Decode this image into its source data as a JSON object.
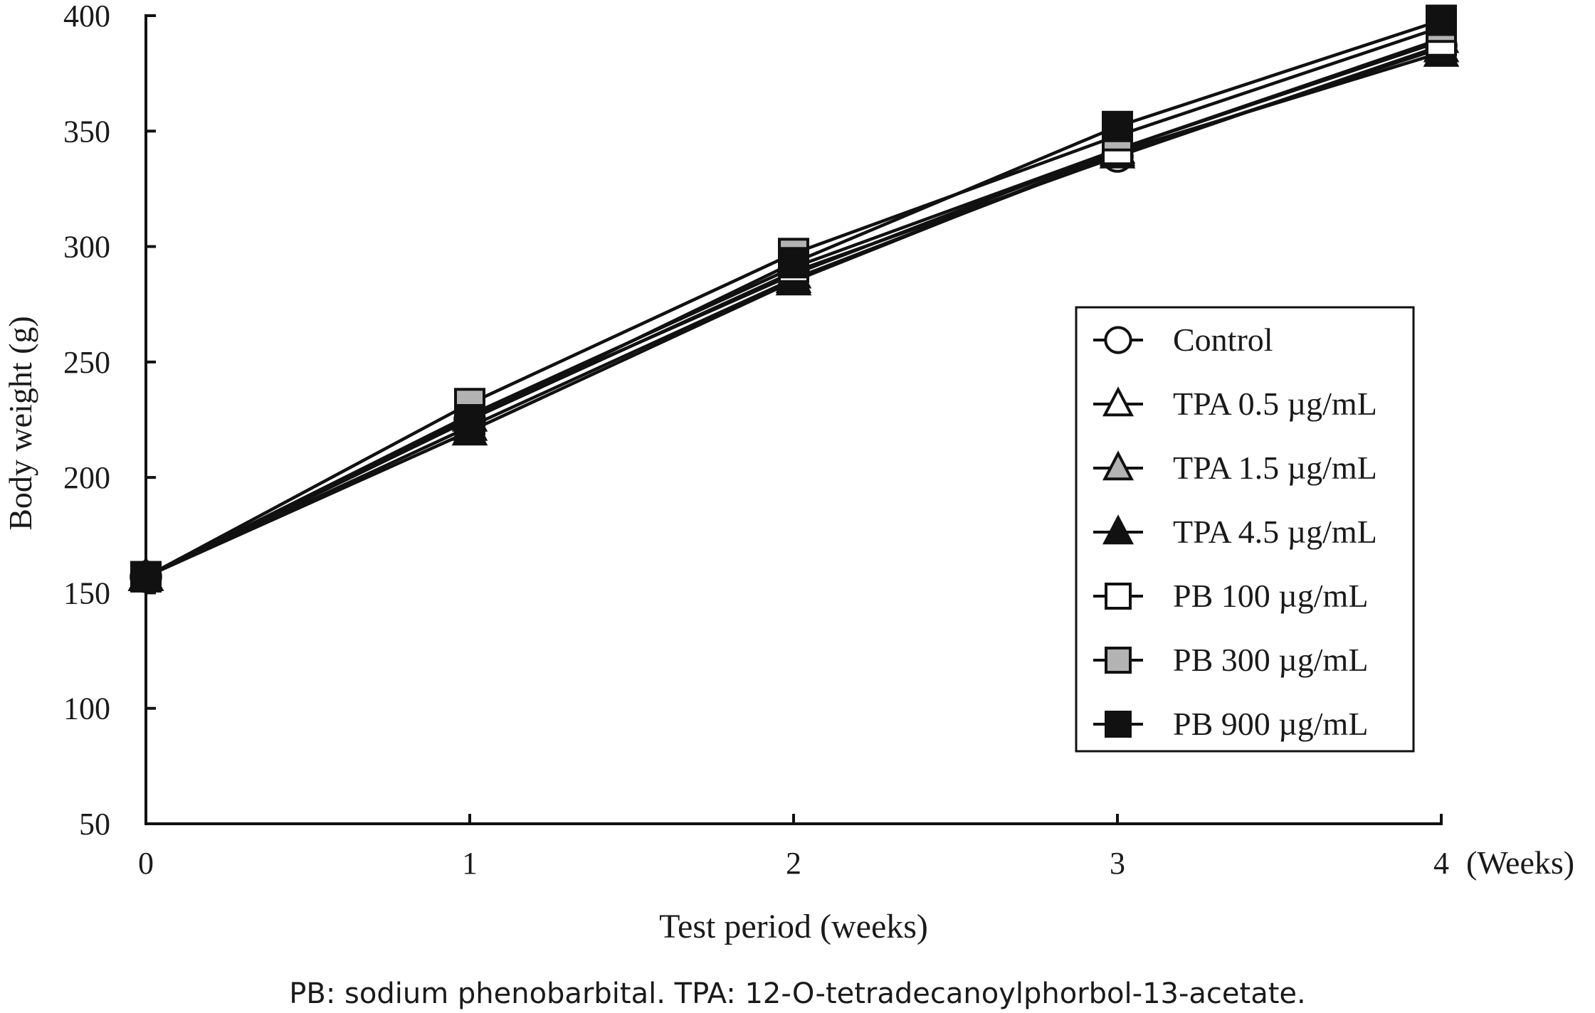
{
  "caption": "PB: sodium phenobarbital. TPA: 12-O-tetradecanoylphorbol-13-acetate.",
  "chart_data": {
    "type": "line",
    "title": "",
    "xlabel": "Test period (weeks)",
    "ylabel": "Body weight (g)",
    "x_unit_label": "(Weeks)",
    "x": [
      0,
      1,
      2,
      3,
      4
    ],
    "x_tick_labels": [
      "0",
      "1",
      "2",
      "3",
      "4"
    ],
    "ylim": [
      50,
      400
    ],
    "y_ticks": [
      50,
      100,
      150,
      200,
      250,
      300,
      350,
      400
    ],
    "y_tick_labels": [
      "50",
      "100",
      "150",
      "200",
      "250",
      "300",
      "350",
      "400"
    ],
    "grid": false,
    "legend_position": "right",
    "series": [
      {
        "name": "Control",
        "marker": "circle",
        "fill": "#ffffff",
        "values": [
          157,
          225,
          289,
          339,
          387
        ]
      },
      {
        "name": "TPA 0.5 µg/mL",
        "marker": "triangle",
        "fill": "#ffffff",
        "values": [
          157,
          226,
          288,
          342,
          390
        ]
      },
      {
        "name": "TPA 1.5 µg/mL",
        "marker": "triangle",
        "fill": "#b3b3b3",
        "values": [
          157,
          222,
          286,
          340,
          386
        ]
      },
      {
        "name": "TPA 4.5 µg/mL",
        "marker": "triangle",
        "fill": "#111111",
        "values": [
          157,
          220,
          285,
          341,
          384
        ]
      },
      {
        "name": "PB 100 µg/mL",
        "marker": "square",
        "fill": "#ffffff",
        "values": [
          157,
          227,
          291,
          342,
          389
        ]
      },
      {
        "name": "PB 300 µg/mL",
        "marker": "square",
        "fill": "#b3b3b3",
        "values": [
          157,
          232,
          297,
          348,
          395
        ]
      },
      {
        "name": "PB 900 µg/mL",
        "marker": "square",
        "fill": "#111111",
        "values": [
          157,
          225,
          293,
          352,
          398
        ]
      }
    ]
  }
}
